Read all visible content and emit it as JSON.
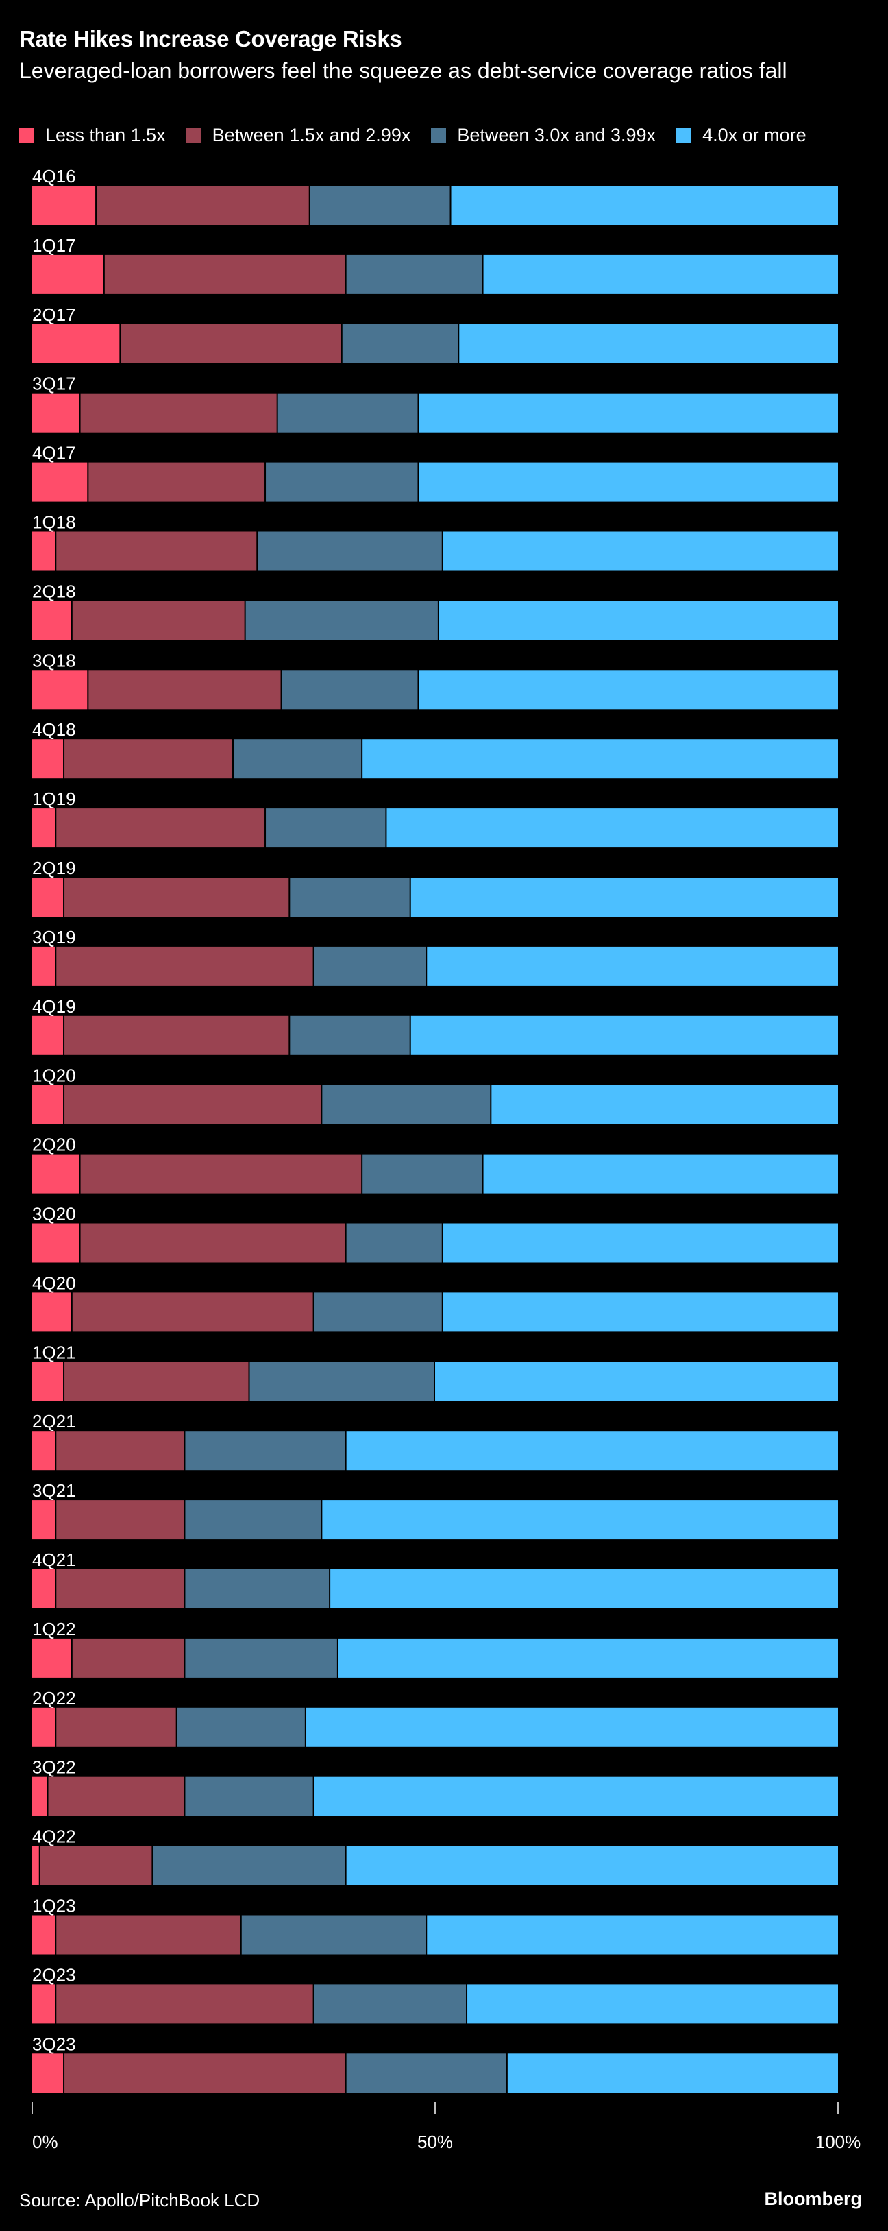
{
  "title": "Rate Hikes Increase Coverage Risks",
  "subtitle": "Leveraged-loan borrowers feel the squeeze as debt-service coverage ratios fall",
  "source": "Source: Apollo/PitchBook LCD",
  "brand": "Bloomberg",
  "chart_data": {
    "type": "bar",
    "orientation": "horizontal",
    "stacked": true,
    "xlim": [
      0,
      100
    ],
    "x_ticks": [
      "0%",
      "50%",
      "100%"
    ],
    "grid": false,
    "legend_placement": "top",
    "categories": [
      "4Q16",
      "1Q17",
      "2Q17",
      "3Q17",
      "4Q17",
      "1Q18",
      "2Q18",
      "3Q18",
      "4Q18",
      "1Q19",
      "2Q19",
      "3Q19",
      "4Q19",
      "1Q20",
      "2Q20",
      "3Q20",
      "4Q20",
      "1Q21",
      "2Q21",
      "3Q21",
      "4Q21",
      "1Q22",
      "2Q22",
      "3Q22",
      "4Q22",
      "1Q23",
      "2Q23",
      "3Q23"
    ],
    "series": [
      {
        "name": "Less than 1.5x",
        "color": "#ff4d6a",
        "values": [
          8,
          9,
          11,
          6,
          7,
          3,
          5,
          7,
          4,
          3,
          4,
          3,
          4,
          4,
          6,
          6,
          5,
          4,
          3,
          3,
          3,
          5,
          3,
          2,
          1,
          3,
          3,
          4
        ]
      },
      {
        "name": "Between 1.5x and 2.99x",
        "color": "#9a4351",
        "values": [
          26.5,
          30,
          27.5,
          24.5,
          22,
          25,
          21.5,
          24,
          21,
          26,
          28,
          32,
          28,
          32,
          35,
          33,
          30,
          23,
          16,
          16,
          16,
          14,
          15,
          17,
          14,
          23,
          32,
          35
        ]
      },
      {
        "name": "Between 3.0x and 3.99x",
        "color": "#4a7491",
        "values": [
          17.5,
          17,
          14.5,
          17.5,
          19,
          23,
          24,
          17,
          16,
          15,
          15,
          14,
          15,
          21,
          15,
          12,
          16,
          23,
          20,
          17,
          18,
          19,
          16,
          16,
          24,
          23,
          19,
          20
        ]
      },
      {
        "name": "4.0x or more",
        "color": "#4cbfff",
        "values": [
          48,
          44,
          47,
          52,
          52,
          49,
          49.5,
          52,
          59,
          56,
          53,
          51,
          53,
          43,
          44,
          49,
          49,
          50,
          61,
          64,
          63,
          62,
          66,
          65,
          61,
          51,
          46,
          41
        ]
      }
    ]
  }
}
